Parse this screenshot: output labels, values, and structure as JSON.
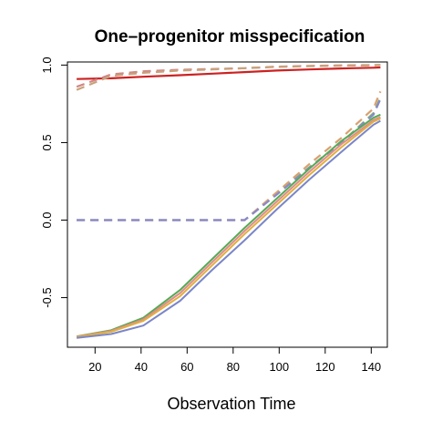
{
  "chart_data": {
    "type": "line",
    "title": "One–progenitor misspecification",
    "xlabel": "Observation Time",
    "ylabel": "",
    "xlim": [
      8,
      147
    ],
    "ylim": [
      -0.82,
      1.02
    ],
    "xticks": [
      20,
      40,
      60,
      80,
      100,
      120,
      140
    ],
    "xtick_labels": [
      "20",
      "40",
      "60",
      "80",
      "100",
      "120",
      "140"
    ],
    "yticks": [
      -0.5,
      0.0,
      0.5,
      1.0
    ],
    "ytick_labels": [
      "-0.5",
      "0.0",
      "0.5",
      "1.0"
    ],
    "grid": false,
    "legend": "none",
    "x": [
      12,
      27,
      41,
      57,
      71,
      85,
      99,
      113,
      127,
      141,
      144
    ],
    "series": [
      {
        "color": "#cc2222",
        "style": "solid",
        "width": 2.2,
        "values": [
          0.91,
          0.915,
          0.925,
          0.935,
          0.945,
          0.955,
          0.965,
          0.972,
          0.978,
          0.983,
          0.985
        ]
      },
      {
        "color": "#d08888",
        "style": "dashed",
        "width": 2.2,
        "values": [
          0.86,
          0.94,
          0.96,
          0.97,
          0.975,
          0.98,
          0.99,
          0.995,
          0.998,
          1.0,
          1.0
        ]
      },
      {
        "color": "#c9a27a",
        "style": "dashed",
        "width": 2.2,
        "values": [
          0.84,
          0.93,
          0.95,
          0.965,
          0.972,
          0.98,
          0.988,
          0.993,
          0.996,
          0.998,
          1.0
        ]
      },
      {
        "color": "#7fb070",
        "style": "dashed",
        "width": 2.2,
        "values": [
          0.0,
          0.0,
          0.0,
          0.0,
          0.0,
          0.0,
          0.17,
          0.34,
          0.5,
          0.69,
          0.79
        ]
      },
      {
        "color": "#d9a070",
        "style": "dashed",
        "width": 2.2,
        "values": [
          0.0,
          0.0,
          0.0,
          0.0,
          0.0,
          0.0,
          0.18,
          0.36,
          0.53,
          0.72,
          0.83
        ]
      },
      {
        "color": "#8888cc",
        "style": "dashed",
        "width": 2.2,
        "values": [
          0.0,
          0.0,
          0.0,
          0.0,
          0.0,
          0.0,
          0.165,
          0.335,
          0.5,
          0.68,
          0.78
        ]
      },
      {
        "color": "#55aa55",
        "style": "solid",
        "width": 2.0,
        "values": [
          -0.75,
          -0.71,
          -0.63,
          -0.45,
          -0.25,
          -0.05,
          0.14,
          0.33,
          0.51,
          0.66,
          0.68
        ]
      },
      {
        "color": "#e08a8a",
        "style": "solid",
        "width": 2.0,
        "values": [
          -0.752,
          -0.715,
          -0.64,
          -0.47,
          -0.27,
          -0.07,
          0.12,
          0.31,
          0.49,
          0.645,
          0.665
        ]
      },
      {
        "color": "#e0b040",
        "style": "solid",
        "width": 2.0,
        "values": [
          -0.755,
          -0.72,
          -0.65,
          -0.49,
          -0.29,
          -0.09,
          0.1,
          0.29,
          0.47,
          0.635,
          0.655
        ]
      },
      {
        "color": "#7a86c8",
        "style": "solid",
        "width": 2.0,
        "values": [
          -0.76,
          -0.735,
          -0.68,
          -0.52,
          -0.32,
          -0.13,
          0.07,
          0.26,
          0.44,
          0.615,
          0.64
        ]
      }
    ]
  }
}
